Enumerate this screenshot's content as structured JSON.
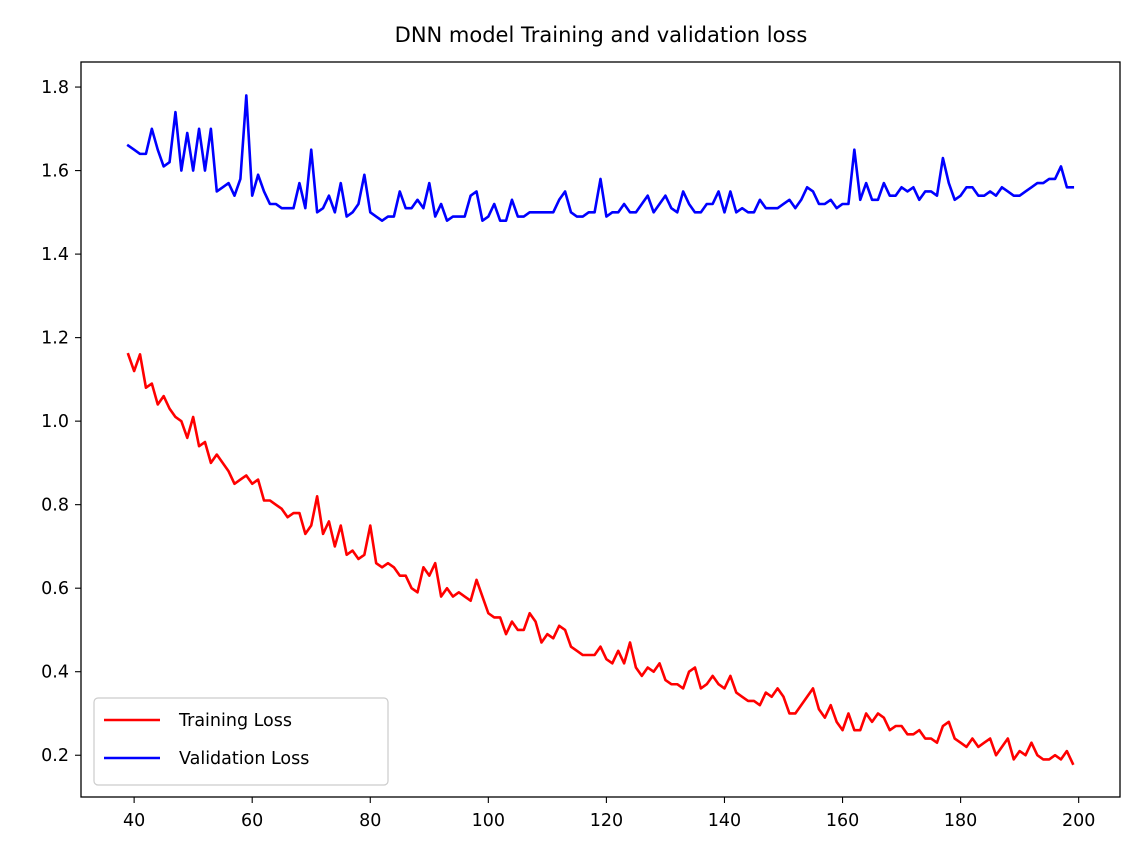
{
  "chart_data": {
    "type": "line",
    "title": "DNN model Training and validation loss",
    "xlabel": "",
    "ylabel": "",
    "xlim": [
      31,
      207
    ],
    "ylim": [
      0.1,
      1.86
    ],
    "xticks": [
      40,
      60,
      80,
      100,
      120,
      140,
      160,
      180,
      200
    ],
    "yticks": [
      0.2,
      0.4,
      0.6,
      0.8,
      1.0,
      1.2,
      1.4,
      1.6,
      1.8
    ],
    "xtick_labels": [
      "40",
      "60",
      "80",
      "100",
      "120",
      "140",
      "160",
      "180",
      "200"
    ],
    "ytick_labels": [
      "0.2",
      "0.4",
      "0.6",
      "0.8",
      "1.0",
      "1.2",
      "1.4",
      "1.6",
      "1.8"
    ],
    "grid": false,
    "legend": "lower-left",
    "x_start": 39,
    "series": [
      {
        "name": "Training Loss",
        "color": "#ff0000",
        "values": [
          1.16,
          1.12,
          1.16,
          1.08,
          1.09,
          1.04,
          1.06,
          1.03,
          1.01,
          1.0,
          0.96,
          1.01,
          0.94,
          0.95,
          0.9,
          0.92,
          0.9,
          0.88,
          0.85,
          0.86,
          0.87,
          0.85,
          0.86,
          0.81,
          0.81,
          0.8,
          0.79,
          0.77,
          0.78,
          0.78,
          0.73,
          0.75,
          0.82,
          0.73,
          0.76,
          0.7,
          0.75,
          0.68,
          0.69,
          0.67,
          0.68,
          0.75,
          0.66,
          0.65,
          0.66,
          0.65,
          0.63,
          0.63,
          0.6,
          0.59,
          0.65,
          0.63,
          0.66,
          0.58,
          0.6,
          0.58,
          0.59,
          0.58,
          0.57,
          0.62,
          0.58,
          0.54,
          0.53,
          0.53,
          0.49,
          0.52,
          0.5,
          0.5,
          0.54,
          0.52,
          0.47,
          0.49,
          0.48,
          0.51,
          0.5,
          0.46,
          0.45,
          0.44,
          0.44,
          0.44,
          0.46,
          0.43,
          0.42,
          0.45,
          0.42,
          0.47,
          0.41,
          0.39,
          0.41,
          0.4,
          0.42,
          0.38,
          0.37,
          0.37,
          0.36,
          0.4,
          0.41,
          0.36,
          0.37,
          0.39,
          0.37,
          0.36,
          0.39,
          0.35,
          0.34,
          0.33,
          0.33,
          0.32,
          0.35,
          0.34,
          0.36,
          0.34,
          0.3,
          0.3,
          0.32,
          0.34,
          0.36,
          0.31,
          0.29,
          0.32,
          0.28,
          0.26,
          0.3,
          0.26,
          0.26,
          0.3,
          0.28,
          0.3,
          0.29,
          0.26,
          0.27,
          0.27,
          0.25,
          0.25,
          0.26,
          0.24,
          0.24,
          0.23,
          0.27,
          0.28,
          0.24,
          0.23,
          0.22,
          0.24,
          0.22,
          0.23,
          0.24,
          0.2,
          0.22,
          0.24,
          0.19,
          0.21,
          0.2,
          0.23,
          0.2,
          0.19,
          0.19,
          0.2,
          0.19,
          0.21,
          0.18
        ]
      },
      {
        "name": "Validation Loss",
        "color": "#0000ff",
        "values": [
          1.66,
          1.65,
          1.64,
          1.64,
          1.7,
          1.65,
          1.61,
          1.62,
          1.74,
          1.6,
          1.69,
          1.6,
          1.7,
          1.6,
          1.7,
          1.55,
          1.56,
          1.57,
          1.54,
          1.58,
          1.78,
          1.54,
          1.59,
          1.55,
          1.52,
          1.52,
          1.51,
          1.51,
          1.51,
          1.57,
          1.51,
          1.65,
          1.5,
          1.51,
          1.54,
          1.5,
          1.57,
          1.49,
          1.5,
          1.52,
          1.59,
          1.5,
          1.49,
          1.48,
          1.49,
          1.49,
          1.55,
          1.51,
          1.51,
          1.53,
          1.51,
          1.57,
          1.49,
          1.52,
          1.48,
          1.49,
          1.49,
          1.49,
          1.54,
          1.55,
          1.48,
          1.49,
          1.52,
          1.48,
          1.48,
          1.53,
          1.49,
          1.49,
          1.5,
          1.5,
          1.5,
          1.5,
          1.5,
          1.53,
          1.55,
          1.5,
          1.49,
          1.49,
          1.5,
          1.5,
          1.58,
          1.49,
          1.5,
          1.5,
          1.52,
          1.5,
          1.5,
          1.52,
          1.54,
          1.5,
          1.52,
          1.54,
          1.51,
          1.5,
          1.55,
          1.52,
          1.5,
          1.5,
          1.52,
          1.52,
          1.55,
          1.5,
          1.55,
          1.5,
          1.51,
          1.5,
          1.5,
          1.53,
          1.51,
          1.51,
          1.51,
          1.52,
          1.53,
          1.51,
          1.53,
          1.56,
          1.55,
          1.52,
          1.52,
          1.53,
          1.51,
          1.52,
          1.52,
          1.65,
          1.53,
          1.57,
          1.53,
          1.53,
          1.57,
          1.54,
          1.54,
          1.56,
          1.55,
          1.56,
          1.53,
          1.55,
          1.55,
          1.54,
          1.63,
          1.57,
          1.53,
          1.54,
          1.56,
          1.56,
          1.54,
          1.54,
          1.55,
          1.54,
          1.56,
          1.55,
          1.54,
          1.54,
          1.55,
          1.56,
          1.57,
          1.57,
          1.58,
          1.58,
          1.61,
          1.56,
          1.56
        ]
      }
    ]
  }
}
